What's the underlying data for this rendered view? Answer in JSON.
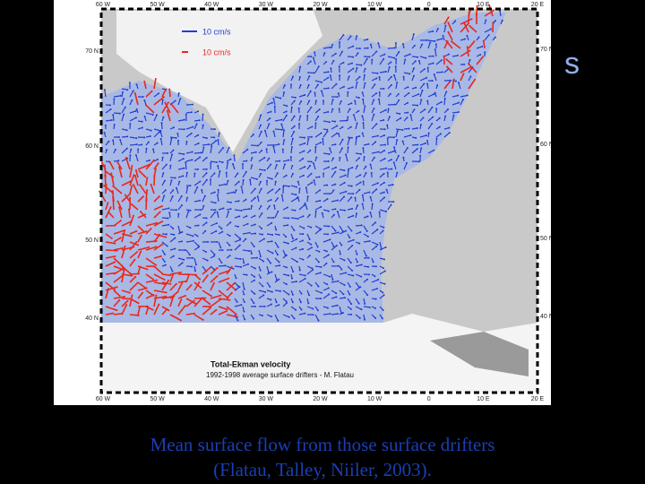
{
  "slide": {
    "title_fragment": "s",
    "caption": [
      "Mean surface flow from those surface drifters",
      "(Flatau, Talley, Niiler, 2003)."
    ]
  },
  "map": {
    "legend": [
      "10 cm/s",
      "10 cm/s"
    ],
    "title": "Total-Ekman velocity",
    "subtitle": "1992-1998 average surface drifters - M. Flatau",
    "lon_labels": [
      "60 W",
      "50 W",
      "40 W",
      "30 W",
      "20 W",
      "10 W",
      "0",
      "10 E",
      "20 E"
    ],
    "lat_labels": [
      "70 N",
      "60 N",
      "50 N",
      "40 N"
    ]
  }
}
